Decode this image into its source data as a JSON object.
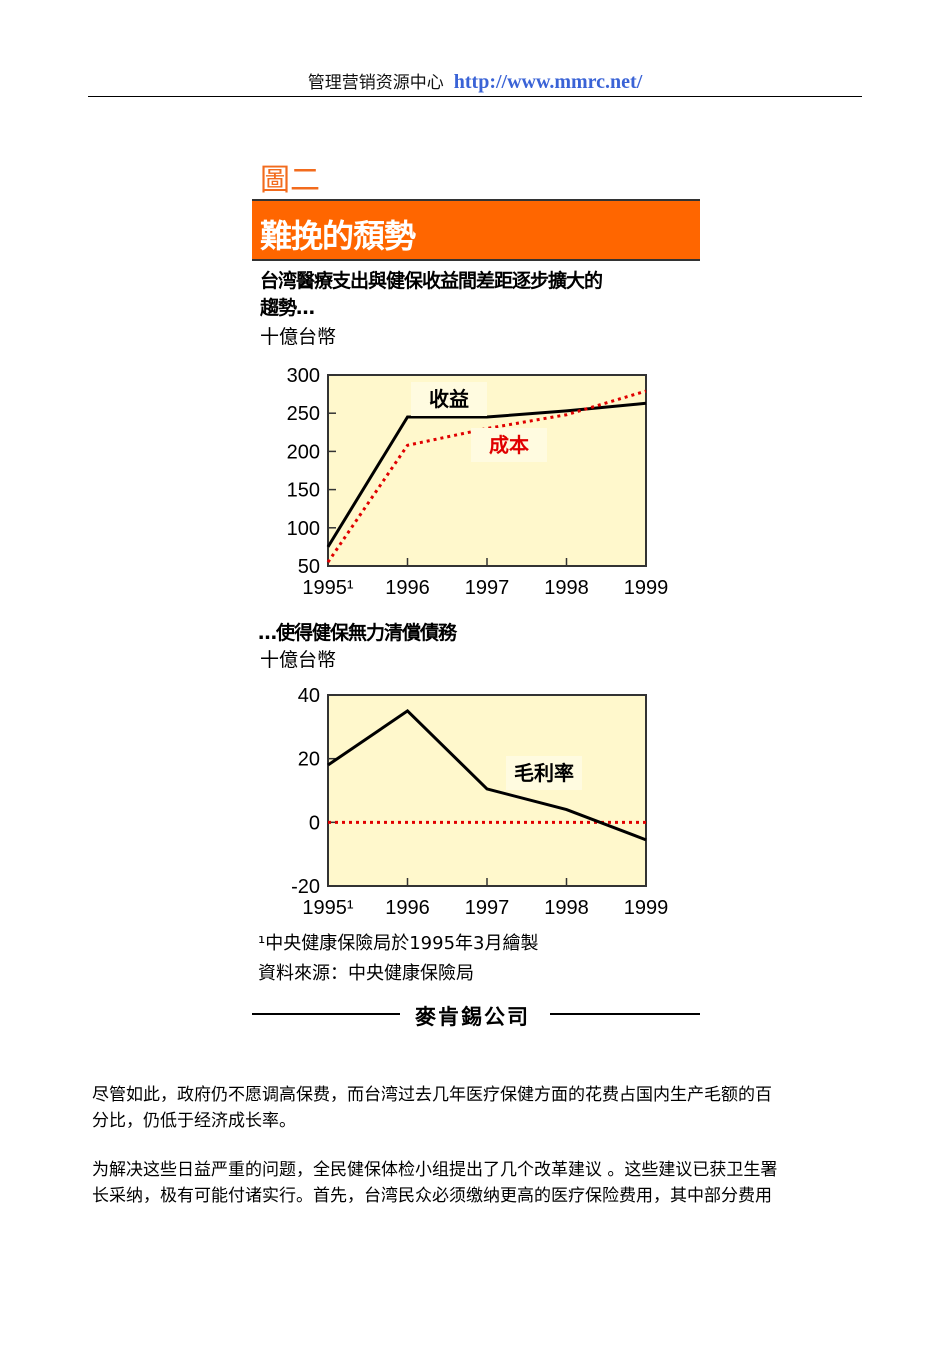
{
  "header": {
    "org": "管理营销资源中心",
    "url": "http://www.mmrc.net/"
  },
  "figure": {
    "label": "圖二",
    "banner_title": "難挽的頹勢",
    "chart1_title_line1": "台湾醫療支出與健保收益間差距逐步擴大的",
    "chart1_title_line2": "趨勢…",
    "chart1_unit": "十億台幣",
    "chart2_title": "…使得健保無力清償債務",
    "chart2_unit": "十億台幣",
    "footnote": "¹中央健康保險局於1995年3月繪製",
    "source": "資料來源：中央健康保險局",
    "logo": "麥肯錫公司"
  },
  "chart_data": [
    {
      "type": "line",
      "title": "台湾醫療支出與健保收益間差距逐步擴大的趨勢…",
      "ylabel": "十億台幣",
      "xlabel": "",
      "categories": [
        "1995¹",
        "1996",
        "1997",
        "1998",
        "1999"
      ],
      "series": [
        {
          "name": "收益",
          "color": "#000000",
          "style": "solid",
          "values": [
            75,
            245,
            245,
            253,
            263
          ]
        },
        {
          "name": "成本",
          "color": "#e00000",
          "style": "dotted",
          "values": [
            55,
            208,
            230,
            248,
            279
          ]
        }
      ],
      "yticks": [
        50,
        100,
        150,
        200,
        250,
        300
      ],
      "ylim": [
        50,
        300
      ],
      "grid": false,
      "background": "#fff8cc",
      "legend": "inline labels"
    },
    {
      "type": "line",
      "title": "…使得健保無力清償債務",
      "ylabel": "十億台幣",
      "xlabel": "",
      "categories": [
        "1995¹",
        "1996",
        "1997",
        "1998",
        "1999"
      ],
      "series": [
        {
          "name": "毛利率",
          "color": "#000000",
          "style": "solid",
          "values": [
            18,
            35,
            10.5,
            4,
            -5.5
          ]
        }
      ],
      "reference_line": {
        "value": 0,
        "color": "#e00000",
        "style": "dotted"
      },
      "yticks": [
        -20,
        0,
        20,
        40
      ],
      "ylim": [
        -20,
        40
      ],
      "grid": false,
      "background": "#fff8cc",
      "legend": "inline label"
    }
  ],
  "body": {
    "para1_line1": "尽管如此，政府仍不愿调高保费，而台湾过去几年医疗保健方面的花费占国内生产毛额的百",
    "para1_line2": "分比，仍低于经济成长率。",
    "para2_line1": "为解决这些日益严重的问题，全民健保体检小组提出了几个改革建议 。这些建议已获卫生署",
    "para2_line2": "长采纳，极有可能付诸实行。首先，台湾民众必须缴纳更高的医疗保险费用，其中部分费用"
  }
}
